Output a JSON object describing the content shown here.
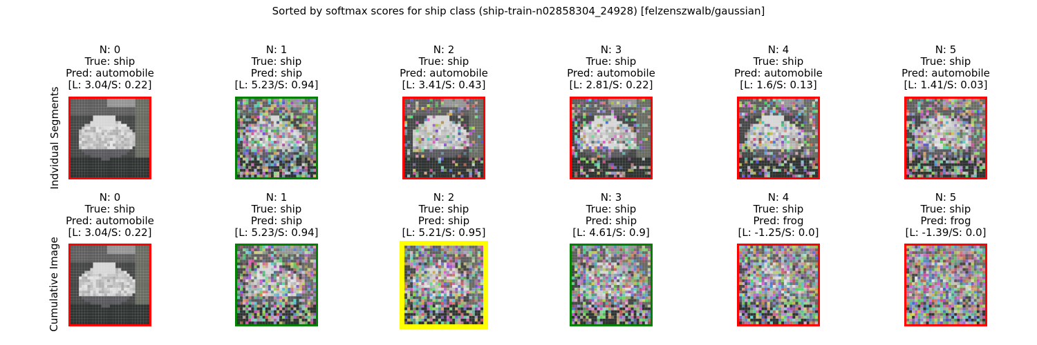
{
  "title": "Sorted by softmax scores for ship class (ship-train-n02858304_24928) [felzenszwalb/gaussian]",
  "row_labels": [
    "Indvidual Segments",
    "Cumulative Image"
  ],
  "border_colors": {
    "wrong": "#ff0000",
    "correct": "#008000",
    "best": "#ffff00"
  },
  "rows": [
    {
      "cells": [
        {
          "n": "N: 0",
          "true": "True: ship",
          "pred": "Pred: automobile",
          "score": "[L: 3.04/S: 0.22]",
          "status": "wrong",
          "noise": 0.0
        },
        {
          "n": "N: 1",
          "true": "True: ship",
          "pred": "Pred: ship",
          "score": "[L: 5.23/S: 0.94]",
          "status": "correct",
          "noise": 0.55
        },
        {
          "n": "N: 2",
          "true": "True: ship",
          "pred": "Pred: automobile",
          "score": "[L: 3.41/S: 0.43]",
          "status": "wrong",
          "noise": 0.2
        },
        {
          "n": "N: 3",
          "true": "True: ship",
          "pred": "Pred: automobile",
          "score": "[L: 2.81/S: 0.22]",
          "status": "wrong",
          "noise": 0.25
        },
        {
          "n": "N: 4",
          "true": "True: ship",
          "pred": "Pred: automobile",
          "score": "[L: 1.6/S: 0.13]",
          "status": "wrong",
          "noise": 0.35
        },
        {
          "n": "N: 5",
          "true": "True: ship",
          "pred": "Pred: automobile",
          "score": "[L: 1.41/S: 0.03]",
          "status": "wrong",
          "noise": 0.45
        }
      ]
    },
    {
      "cells": [
        {
          "n": "N: 0",
          "true": "True: ship",
          "pred": "Pred: automobile",
          "score": "[L: 3.04/S: 0.22]",
          "status": "wrong",
          "noise": 0.0
        },
        {
          "n": "N: 1",
          "true": "True: ship",
          "pred": "Pred: ship",
          "score": "[L: 5.23/S: 0.94]",
          "status": "correct",
          "noise": 0.55
        },
        {
          "n": "N: 2",
          "true": "True: ship",
          "pred": "Pred: ship",
          "score": "[L: 5.21/S: 0.95]",
          "status": "best",
          "noise": 0.6
        },
        {
          "n": "N: 3",
          "true": "True: ship",
          "pred": "Pred: ship",
          "score": "[L: 4.61/S: 0.9]",
          "status": "correct",
          "noise": 0.65
        },
        {
          "n": "N: 4",
          "true": "True: ship",
          "pred": "Pred: frog",
          "score": "[L: -1.25/S: 0.0]",
          "status": "wrong",
          "noise": 0.75
        },
        {
          "n": "N: 5",
          "true": "True: ship",
          "pred": "Pred: frog",
          "score": "[L: -1.39/S: 0.0]",
          "status": "wrong",
          "noise": 0.85
        }
      ]
    }
  ]
}
